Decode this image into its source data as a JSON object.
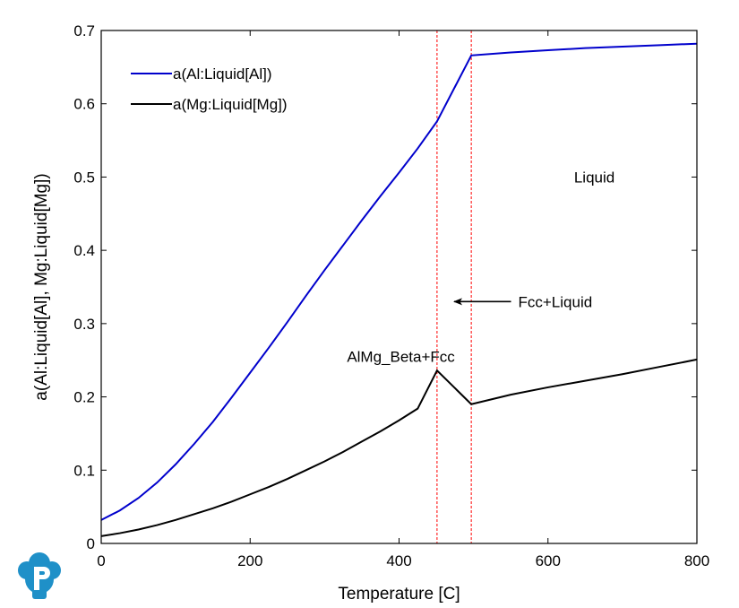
{
  "chart_data": {
    "type": "line",
    "title": "",
    "xlabel": "Temperature [C]",
    "ylabel": "a(Al:Liquid[Al], Mg:Liquid[Mg])",
    "xlim": [
      0,
      800
    ],
    "ylim": [
      0,
      0.7
    ],
    "xticks": [
      0,
      200,
      400,
      600,
      800
    ],
    "xtick_labels": [
      "0",
      "200",
      "400",
      "600",
      "800"
    ],
    "yticks": [
      0,
      0.1,
      0.2,
      0.3,
      0.4,
      0.5,
      0.6,
      0.7
    ],
    "ytick_labels": [
      "0",
      "0.1",
      "0.2",
      "0.3",
      "0.4",
      "0.5",
      "0.6",
      "0.7"
    ],
    "grid": false,
    "legend_position": "top-left",
    "series": [
      {
        "name": "a(Al:Liquid[Al])",
        "color": "#0000cc",
        "x": [
          0,
          25,
          50,
          75,
          100,
          125,
          150,
          175,
          200,
          225,
          250,
          275,
          300,
          325,
          350,
          375,
          400,
          425,
          451,
          497,
          550,
          600,
          650,
          700,
          750,
          800
        ],
        "y": [
          0.032,
          0.045,
          0.062,
          0.083,
          0.108,
          0.136,
          0.166,
          0.199,
          0.233,
          0.267,
          0.302,
          0.338,
          0.373,
          0.407,
          0.441,
          0.474,
          0.506,
          0.539,
          0.576,
          0.666,
          0.67,
          0.673,
          0.676,
          0.678,
          0.68,
          0.682
        ]
      },
      {
        "name": "a(Mg:Liquid[Mg])",
        "color": "#000000",
        "x": [
          0,
          25,
          50,
          75,
          100,
          125,
          150,
          175,
          200,
          225,
          250,
          275,
          300,
          325,
          350,
          375,
          400,
          425,
          451,
          497,
          550,
          600,
          650,
          700,
          750,
          800
        ],
        "y": [
          0.01,
          0.014,
          0.019,
          0.025,
          0.032,
          0.04,
          0.048,
          0.057,
          0.067,
          0.077,
          0.088,
          0.1,
          0.112,
          0.125,
          0.139,
          0.153,
          0.168,
          0.184,
          0.236,
          0.19,
          0.203,
          0.213,
          0.222,
          0.231,
          0.241,
          0.251
        ]
      }
    ],
    "vlines": [
      {
        "x": 451,
        "color": "#ff0000",
        "style": "dashed"
      },
      {
        "x": 497,
        "color": "#ff0000",
        "style": "dashed"
      }
    ],
    "annotations": [
      {
        "text": "Liquid",
        "x": 635,
        "y": 0.5
      },
      {
        "text": "Fcc+Liquid",
        "x": 560,
        "y": 0.33,
        "arrow_to": {
          "x": 474,
          "y": 0.33
        }
      },
      {
        "text": "AlMg_Beta+Fcc",
        "x": 330,
        "y": 0.255
      }
    ]
  },
  "logo": {
    "letter": "P",
    "color": "#1f90c8",
    "name": "company-logo"
  }
}
